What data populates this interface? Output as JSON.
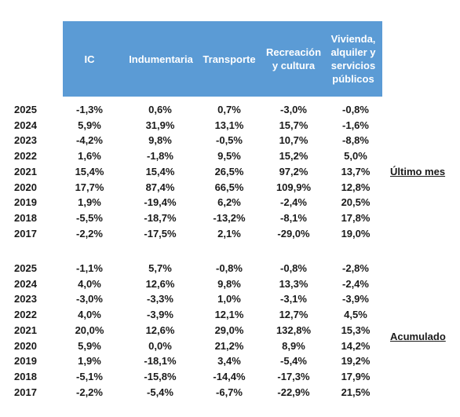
{
  "headers": [
    "IC",
    "Indumentaria",
    "Transporte",
    "Recreación\ny cultura",
    "Vivienda,\nalquiler y\nservicios\npúblicos"
  ],
  "sections": [
    {
      "label": "Último mes",
      "rows": [
        [
          "2025",
          "-1,3%",
          "0,6%",
          "0,7%",
          "-3,0%",
          "-0,8%"
        ],
        [
          "2024",
          "5,9%",
          "31,9%",
          "13,1%",
          "15,7%",
          "-1,6%"
        ],
        [
          "2023",
          "-4,2%",
          "9,8%",
          "-0,5%",
          "10,7%",
          "-8,8%"
        ],
        [
          "2022",
          "1,6%",
          "-1,8%",
          "9,5%",
          "15,2%",
          "5,0%"
        ],
        [
          "2021",
          "15,4%",
          "15,4%",
          "26,5%",
          "97,2%",
          "13,7%"
        ],
        [
          "2020",
          "17,7%",
          "87,4%",
          "66,5%",
          "109,9%",
          "12,8%"
        ],
        [
          "2019",
          "1,9%",
          "-19,4%",
          "6,2%",
          "-2,4%",
          "20,5%"
        ],
        [
          "2018",
          "-5,5%",
          "-18,7%",
          "-13,2%",
          "-8,1%",
          "17,8%"
        ],
        [
          "2017",
          "-2,2%",
          "-17,5%",
          "2,1%",
          "-29,0%",
          "19,0%"
        ]
      ]
    },
    {
      "label": "Acumulado",
      "rows": [
        [
          "2025",
          "-1,1%",
          "5,7%",
          "-0,8%",
          "-0,8%",
          "-2,8%"
        ],
        [
          "2024",
          "4,0%",
          "12,6%",
          "9,8%",
          "13,3%",
          "-2,4%"
        ],
        [
          "2023",
          "-3,0%",
          "-3,3%",
          "1,0%",
          "-3,1%",
          "-3,9%"
        ],
        [
          "2022",
          "4,0%",
          "-3,9%",
          "12,1%",
          "12,7%",
          "4,5%"
        ],
        [
          "2021",
          "20,0%",
          "12,6%",
          "29,0%",
          "132,8%",
          "15,3%"
        ],
        [
          "2020",
          "5,9%",
          "0,0%",
          "21,2%",
          "8,9%",
          "14,2%"
        ],
        [
          "2019",
          "1,9%",
          "-18,1%",
          "3,4%",
          "-5,4%",
          "19,2%"
        ],
        [
          "2018",
          "-5,1%",
          "-15,8%",
          "-14,4%",
          "-17,3%",
          "17,9%"
        ],
        [
          "2017",
          "-2,2%",
          "-5,4%",
          "-6,7%",
          "-22,9%",
          "21,5%"
        ]
      ]
    }
  ],
  "colors": {
    "header_bg": "#5b9bd5",
    "header_text": "#ffffff"
  }
}
